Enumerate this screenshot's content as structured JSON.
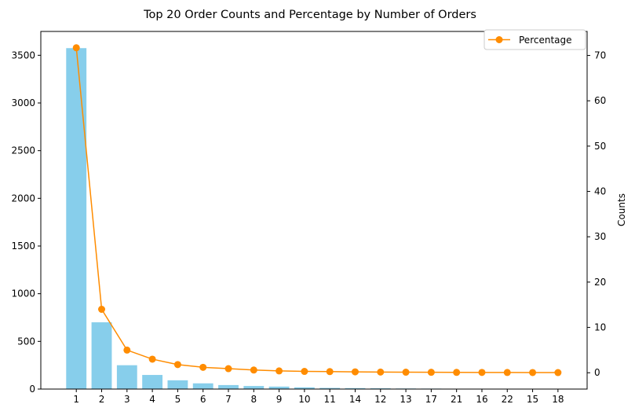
{
  "chart_data": {
    "type": "bar",
    "title": "Top 20 Order Counts and Percentage by Number of Orders",
    "xlabel": "",
    "ylabel_left": "",
    "ylabel_right": "Counts",
    "categories": [
      "1",
      "2",
      "3",
      "4",
      "5",
      "6",
      "7",
      "8",
      "9",
      "10",
      "11",
      "14",
      "12",
      "13",
      "17",
      "21",
      "16",
      "22",
      "15",
      "18"
    ],
    "bar_series": {
      "values": [
        3575,
        700,
        250,
        148,
        92,
        60,
        42,
        32,
        26,
        18,
        12,
        10,
        8,
        6,
        5,
        4,
        4,
        3,
        3,
        2
      ],
      "color": "#87ceeb"
    },
    "line_series": {
      "name": "Percentage",
      "values": [
        71.7,
        14.0,
        5.0,
        3.0,
        1.8,
        1.2,
        0.9,
        0.6,
        0.4,
        0.3,
        0.25,
        0.2,
        0.15,
        0.12,
        0.1,
        0.08,
        0.07,
        0.06,
        0.05,
        0.04
      ],
      "color": "#ff8c00"
    },
    "left_axis": {
      "ylim": [
        0,
        3750
      ],
      "ticks": [
        0,
        500,
        1000,
        1500,
        2000,
        2500,
        3000,
        3500
      ]
    },
    "right_axis": {
      "ylim": [
        -3.6,
        75.3
      ],
      "ticks": [
        0,
        10,
        20,
        30,
        40,
        50,
        60,
        70
      ]
    },
    "legend": {
      "position": "top-right",
      "entries": [
        "Percentage"
      ]
    },
    "grid": false
  }
}
